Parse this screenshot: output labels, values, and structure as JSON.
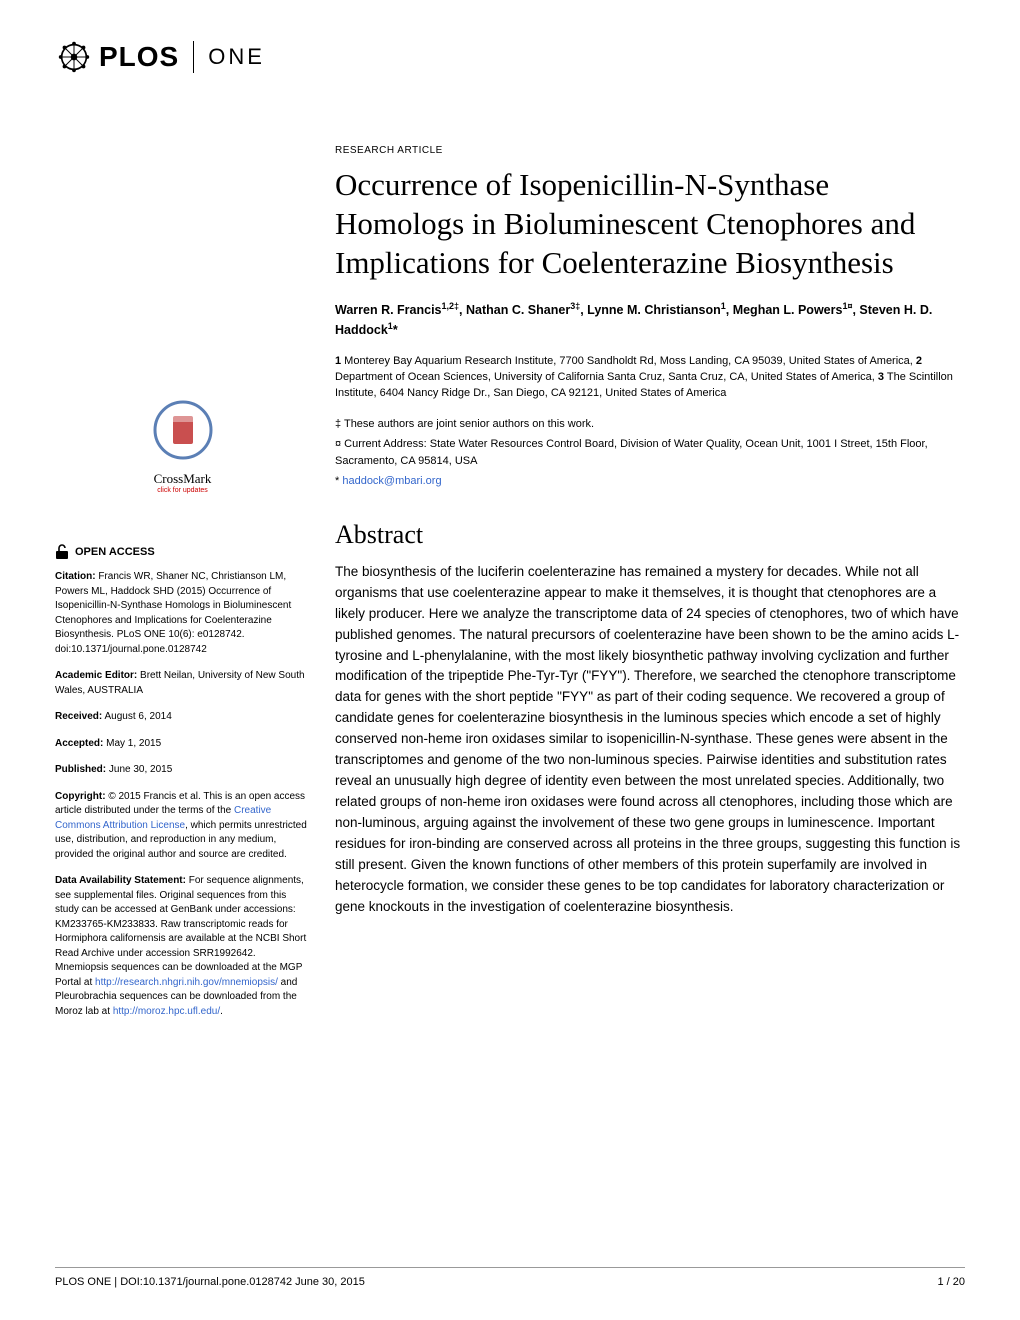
{
  "journal": {
    "logo_text": "PLOS",
    "sub_text": "ONE"
  },
  "article": {
    "type": "RESEARCH ARTICLE",
    "title": "Occurrence of Isopenicillin-N-Synthase Homologs in Bioluminescent Ctenophores and Implications for Coelenterazine Biosynthesis",
    "authors_html": "Warren R. Francis<sup>1,2‡</sup>, Nathan C. Shaner<sup>3‡</sup>, Lynne M. Christianson<sup>1</sup>, Meghan L. Powers<sup>1¤</sup>, Steven H. D. Haddock<sup>1</sup>*",
    "affiliations": "1 Monterey Bay Aquarium Research Institute, 7700 Sandholdt Rd, Moss Landing, CA 95039, United States of America, 2 Department of Ocean Sciences, University of California Santa Cruz, Santa Cruz, CA, United States of America, 3 The Scintillon Institute, 6404 Nancy Ridge Dr., San Diego, CA 92121, United States of America",
    "note_senior": "‡ These authors are joint senior authors on this work.",
    "note_current": "¤ Current Address: State Water Resources Control Board, Division of Water Quality, Ocean Unit, 1001 I Street, 15th Floor, Sacramento, CA 95814, USA",
    "email_prefix": "* ",
    "email": "haddock@mbari.org",
    "abstract_heading": "Abstract",
    "abstract": "The biosynthesis of the luciferin coelenterazine has remained a mystery for decades. While not all organisms that use coelenterazine appear to make it themselves, it is thought that ctenophores are a likely producer. Here we analyze the transcriptome data of 24 species of ctenophores, two of which have published genomes. The natural precursors of coelenterazine have been shown to be the amino acids L-tyrosine and L-phenylalanine, with the most likely biosynthetic pathway involving cyclization and further modification of the tripeptide Phe-Tyr-Tyr (\"FYY\"). Therefore, we searched the ctenophore transcriptome data for genes with the short peptide \"FYY\" as part of their coding sequence. We recovered a group of candidate genes for coelenterazine biosynthesis in the luminous species which encode a set of highly conserved non-heme iron oxidases similar to isopenicillin-N-synthase. These genes were absent in the transcriptomes and genome of the two non-luminous species. Pairwise identities and substitution rates reveal an unusually high degree of identity even between the most unrelated species. Additionally, two related groups of non-heme iron oxidases were found across all ctenophores, including those which are non-luminous, arguing against the involvement of these two gene groups in luminescence. Important residues for iron-binding are conserved across all proteins in the three groups, suggesting this function is still present. Given the known functions of other members of this protein superfamily are involved in heterocycle formation, we consider these genes to be top candidates for laboratory characterization or gene knockouts in the investigation of coelenterazine biosynthesis."
  },
  "crossmark": {
    "label": "CrossMark",
    "sub": "click for updates"
  },
  "sidebar": {
    "open_access": "OPEN ACCESS",
    "citation_label": "Citation:",
    "citation": " Francis WR, Shaner NC, Christianson LM, Powers ML, Haddock SHD (2015) Occurrence of Isopenicillin-N-Synthase Homologs in Bioluminescent Ctenophores and Implications for Coelenterazine Biosynthesis. PLoS ONE 10(6): e0128742. doi:10.1371/journal.pone.0128742",
    "editor_label": "Academic Editor:",
    "editor": " Brett Neilan, University of New South Wales, AUSTRALIA",
    "received_label": "Received:",
    "received": " August 6, 2014",
    "accepted_label": "Accepted:",
    "accepted": " May 1, 2015",
    "published_label": "Published:",
    "published": " June 30, 2015",
    "copyright_label": "Copyright:",
    "copyright_pre": " © 2015 Francis et al. This is an open access article distributed under the terms of the ",
    "copyright_link": "Creative Commons Attribution License",
    "copyright_post": ", which permits unrestricted use, distribution, and reproduction in any medium, provided the original author and source are credited.",
    "data_label": "Data Availability Statement:",
    "data_pre": " For sequence alignments, see supplemental files. Original sequences from this study can be accessed at GenBank under accessions: KM233765-KM233833. Raw transcriptomic reads for Hormiphora californensis are available at the NCBI Short Read Archive under accession SRR1992642. Mnemiopsis sequences can be downloaded at the MGP Portal at ",
    "data_link1": "http://research.nhgri.nih.gov/mnemiopsis/",
    "data_mid": " and Pleurobrachia sequences can be downloaded from the Moroz lab at ",
    "data_link2": "http://moroz.hpc.ufl.edu/",
    "data_post": "."
  },
  "footer": {
    "left": "PLOS ONE | DOI:10.1371/journal.pone.0128742    June 30, 2015",
    "right": "1 / 20"
  },
  "colors": {
    "link": "#3366cc",
    "text": "#000000",
    "crossmark_red": "#cc0000"
  }
}
